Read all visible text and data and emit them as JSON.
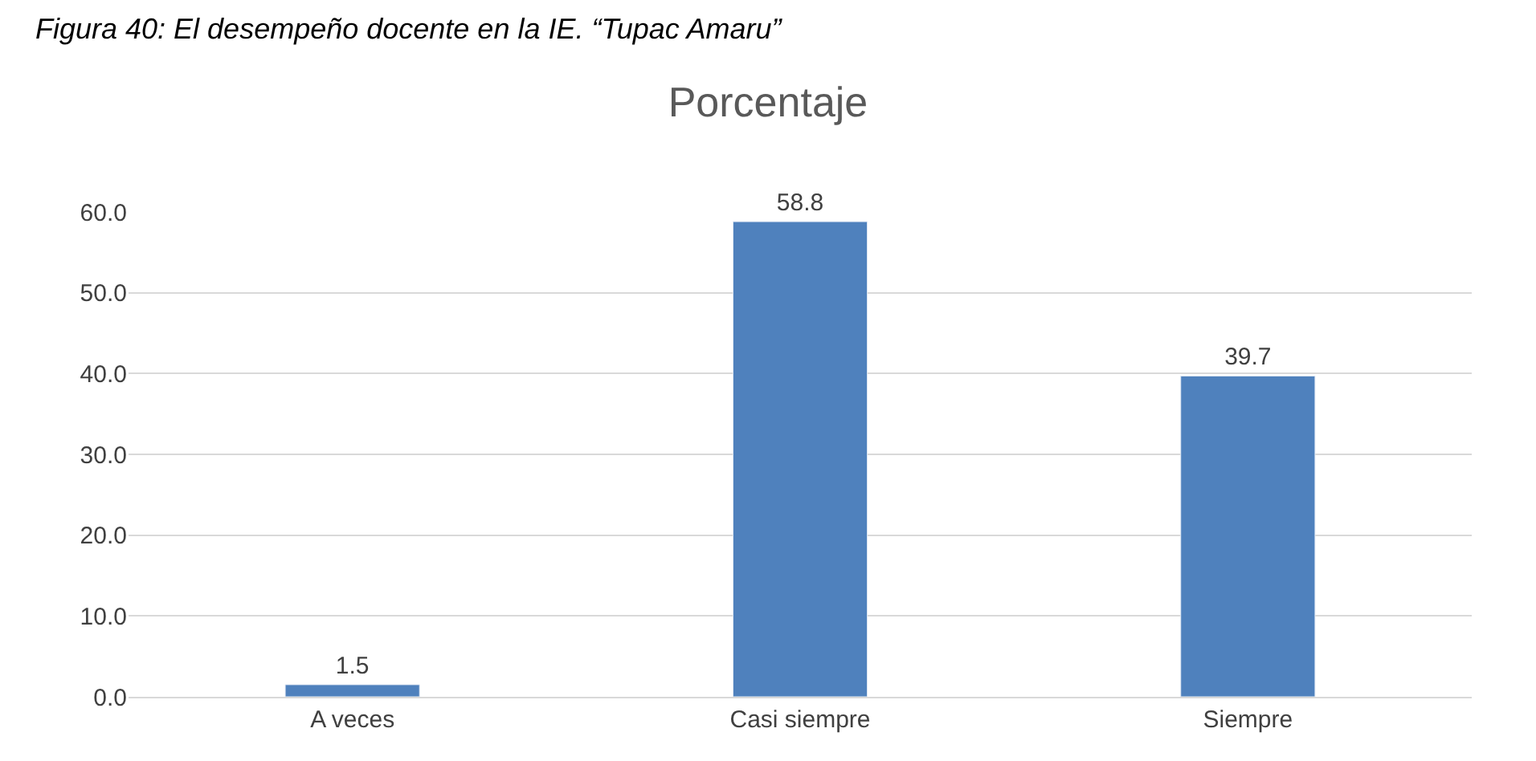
{
  "chart_data": {
    "type": "bar",
    "title": "Porcentaje",
    "annotations": [
      "Figura 40: El desempeño docente en la IE. “Tupac Amaru”"
    ],
    "categories": [
      "A veces",
      "Casi siempre",
      "Siempre"
    ],
    "values": [
      1.5,
      58.8,
      39.7
    ],
    "color": "#4f81bd",
    "value_labels": [
      "1.5",
      "58.8",
      "39.7"
    ],
    "ylim": [
      0,
      60
    ],
    "yticks": [
      {
        "value": 0,
        "label": "0.0"
      },
      {
        "value": 10,
        "label": "10.0"
      },
      {
        "value": 20,
        "label": "20.0"
      },
      {
        "value": 30,
        "label": "30.0"
      },
      {
        "value": 40,
        "label": "40.0"
      },
      {
        "value": 50,
        "label": "50.0"
      },
      {
        "value": 60,
        "label": "60.0"
      }
    ],
    "grid": "y",
    "legend": false
  }
}
